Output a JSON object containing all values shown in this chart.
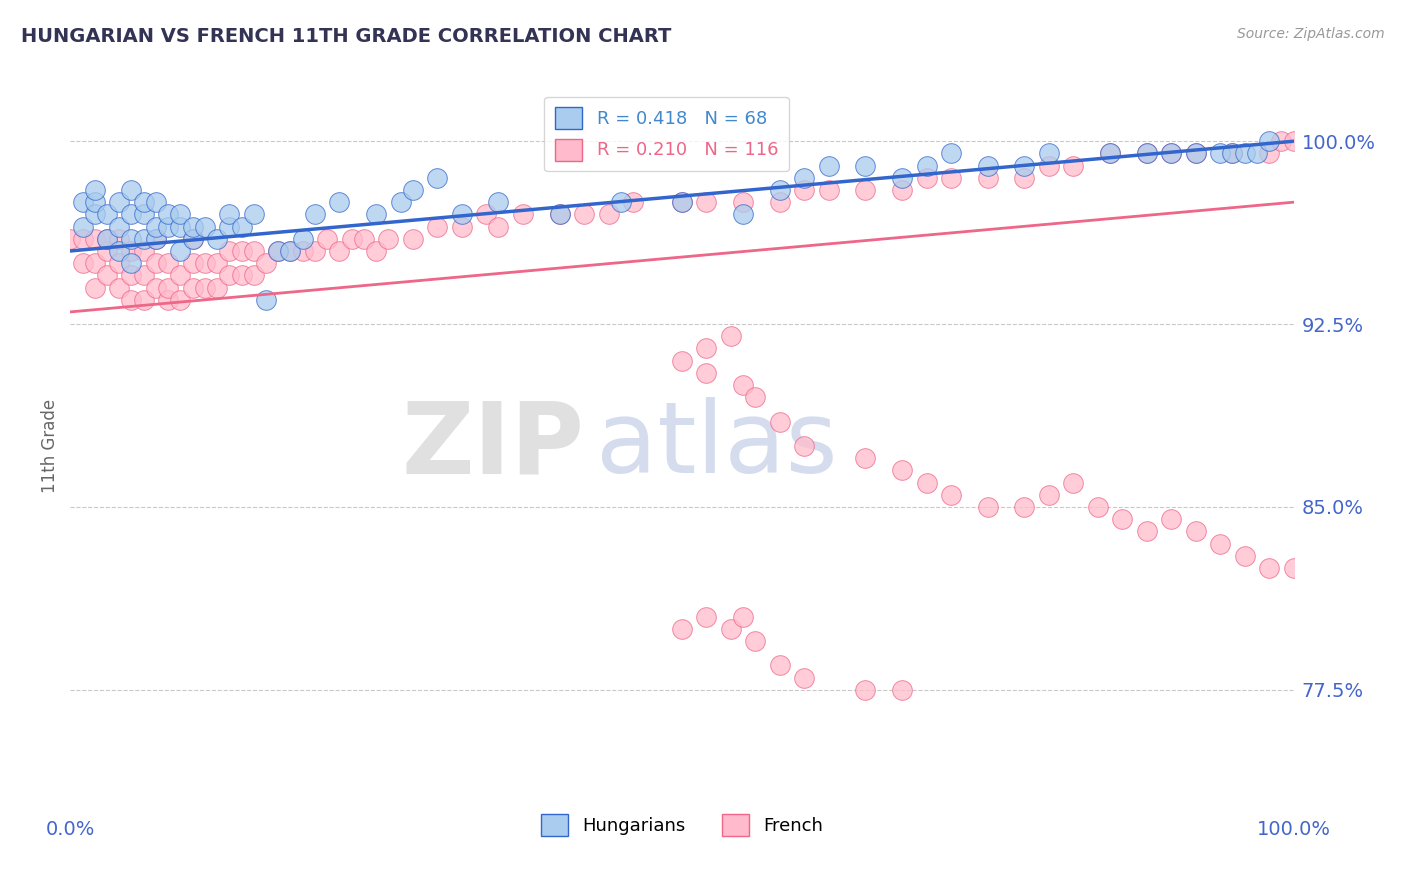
{
  "title": "HUNGARIAN VS FRENCH 11TH GRADE CORRELATION CHART",
  "source_text": "Source: ZipAtlas.com",
  "ylabel": "11th Grade",
  "xmin": 0.0,
  "xmax": 100.0,
  "ymin": 72.5,
  "ymax": 102.5,
  "yticks": [
    77.5,
    85.0,
    92.5,
    100.0
  ],
  "ytick_labels": [
    "77.5%",
    "85.0%",
    "92.5%",
    "100.0%"
  ],
  "xtick_positions": [
    0.0,
    100.0
  ],
  "xtick_labels": [
    "0.0%",
    "100.0%"
  ],
  "legend_entries": [
    {
      "label": "R = 0.418   N = 68",
      "color": "#4488cc"
    },
    {
      "label": "R = 0.210   N = 116",
      "color": "#ee6688"
    }
  ],
  "hungarian_color": "#aaccee",
  "french_color": "#ffbbcc",
  "trendline_hungarian_color": "#3366cc",
  "trendline_french_color": "#ee6688",
  "background_color": "#ffffff",
  "grid_color": "#bbbbbb",
  "title_color": "#333355",
  "axis_label_color": "#4466cc",
  "source_color": "#999999",
  "ylabel_color": "#666666",
  "watermark_zip_color": "#cccccc",
  "watermark_atlas_color": "#aabbdd",
  "hungarian_scatter_x": [
    1,
    1,
    2,
    2,
    2,
    3,
    3,
    4,
    4,
    4,
    5,
    5,
    5,
    5,
    6,
    6,
    6,
    7,
    7,
    7,
    8,
    8,
    9,
    9,
    9,
    10,
    10,
    11,
    12,
    13,
    13,
    14,
    15,
    16,
    17,
    18,
    19,
    20,
    22,
    25,
    27,
    28,
    30,
    32,
    35,
    40,
    45,
    50,
    55,
    58,
    60,
    62,
    65,
    68,
    70,
    72,
    75,
    78,
    80,
    85,
    88,
    90,
    92,
    94,
    95,
    96,
    97,
    98
  ],
  "hungarian_scatter_y": [
    96.5,
    97.5,
    97.0,
    97.5,
    98.0,
    96.0,
    97.0,
    95.5,
    96.5,
    97.5,
    95.0,
    96.0,
    97.0,
    98.0,
    96.0,
    97.0,
    97.5,
    96.0,
    96.5,
    97.5,
    96.5,
    97.0,
    95.5,
    96.5,
    97.0,
    96.0,
    96.5,
    96.5,
    96.0,
    96.5,
    97.0,
    96.5,
    97.0,
    93.5,
    95.5,
    95.5,
    96.0,
    97.0,
    97.5,
    97.0,
    97.5,
    98.0,
    98.5,
    97.0,
    97.5,
    97.0,
    97.5,
    97.5,
    97.0,
    98.0,
    98.5,
    99.0,
    99.0,
    98.5,
    99.0,
    99.5,
    99.0,
    99.0,
    99.5,
    99.5,
    99.5,
    99.5,
    99.5,
    99.5,
    99.5,
    99.5,
    99.5,
    100.0
  ],
  "french_scatter_x": [
    0,
    1,
    1,
    2,
    2,
    2,
    3,
    3,
    3,
    4,
    4,
    4,
    5,
    5,
    5,
    6,
    6,
    6,
    7,
    7,
    7,
    8,
    8,
    8,
    9,
    9,
    10,
    10,
    10,
    11,
    11,
    12,
    12,
    13,
    13,
    14,
    14,
    15,
    15,
    16,
    17,
    18,
    19,
    20,
    21,
    22,
    23,
    24,
    25,
    26,
    28,
    30,
    32,
    34,
    35,
    37,
    40,
    42,
    44,
    46,
    50,
    52,
    55,
    58,
    60,
    62,
    65,
    68,
    70,
    72,
    75,
    78,
    80,
    82,
    85,
    88,
    90,
    92,
    95,
    98,
    99,
    100,
    50,
    52,
    52,
    54,
    55,
    56,
    58,
    60,
    65,
    68,
    70,
    72,
    75,
    78,
    80,
    82,
    84,
    86,
    88,
    90,
    92,
    94,
    96,
    98,
    100,
    50,
    52,
    54,
    55,
    56,
    58,
    60,
    65,
    68
  ],
  "french_scatter_y": [
    96.0,
    95.0,
    96.0,
    94.0,
    95.0,
    96.0,
    94.5,
    95.5,
    96.0,
    94.0,
    95.0,
    96.0,
    93.5,
    94.5,
    95.5,
    93.5,
    94.5,
    95.5,
    94.0,
    95.0,
    96.0,
    93.5,
    94.0,
    95.0,
    93.5,
    94.5,
    94.0,
    95.0,
    96.0,
    94.0,
    95.0,
    94.0,
    95.0,
    94.5,
    95.5,
    94.5,
    95.5,
    94.5,
    95.5,
    95.0,
    95.5,
    95.5,
    95.5,
    95.5,
    96.0,
    95.5,
    96.0,
    96.0,
    95.5,
    96.0,
    96.0,
    96.5,
    96.5,
    97.0,
    96.5,
    97.0,
    97.0,
    97.0,
    97.0,
    97.5,
    97.5,
    97.5,
    97.5,
    97.5,
    98.0,
    98.0,
    98.0,
    98.0,
    98.5,
    98.5,
    98.5,
    98.5,
    99.0,
    99.0,
    99.5,
    99.5,
    99.5,
    99.5,
    99.5,
    99.5,
    100.0,
    100.0,
    91.0,
    90.5,
    91.5,
    92.0,
    90.0,
    89.5,
    88.5,
    87.5,
    87.0,
    86.5,
    86.0,
    85.5,
    85.0,
    85.0,
    85.5,
    86.0,
    85.0,
    84.5,
    84.0,
    84.5,
    84.0,
    83.5,
    83.0,
    82.5,
    82.5,
    80.0,
    80.5,
    80.0,
    80.5,
    79.5,
    78.5,
    78.0,
    77.5,
    77.5
  ],
  "hungarian_trend_x": [
    0,
    100
  ],
  "hungarian_trend_y": [
    95.5,
    100.0
  ],
  "french_trend_x": [
    0,
    100
  ],
  "french_trend_y": [
    93.0,
    97.5
  ]
}
